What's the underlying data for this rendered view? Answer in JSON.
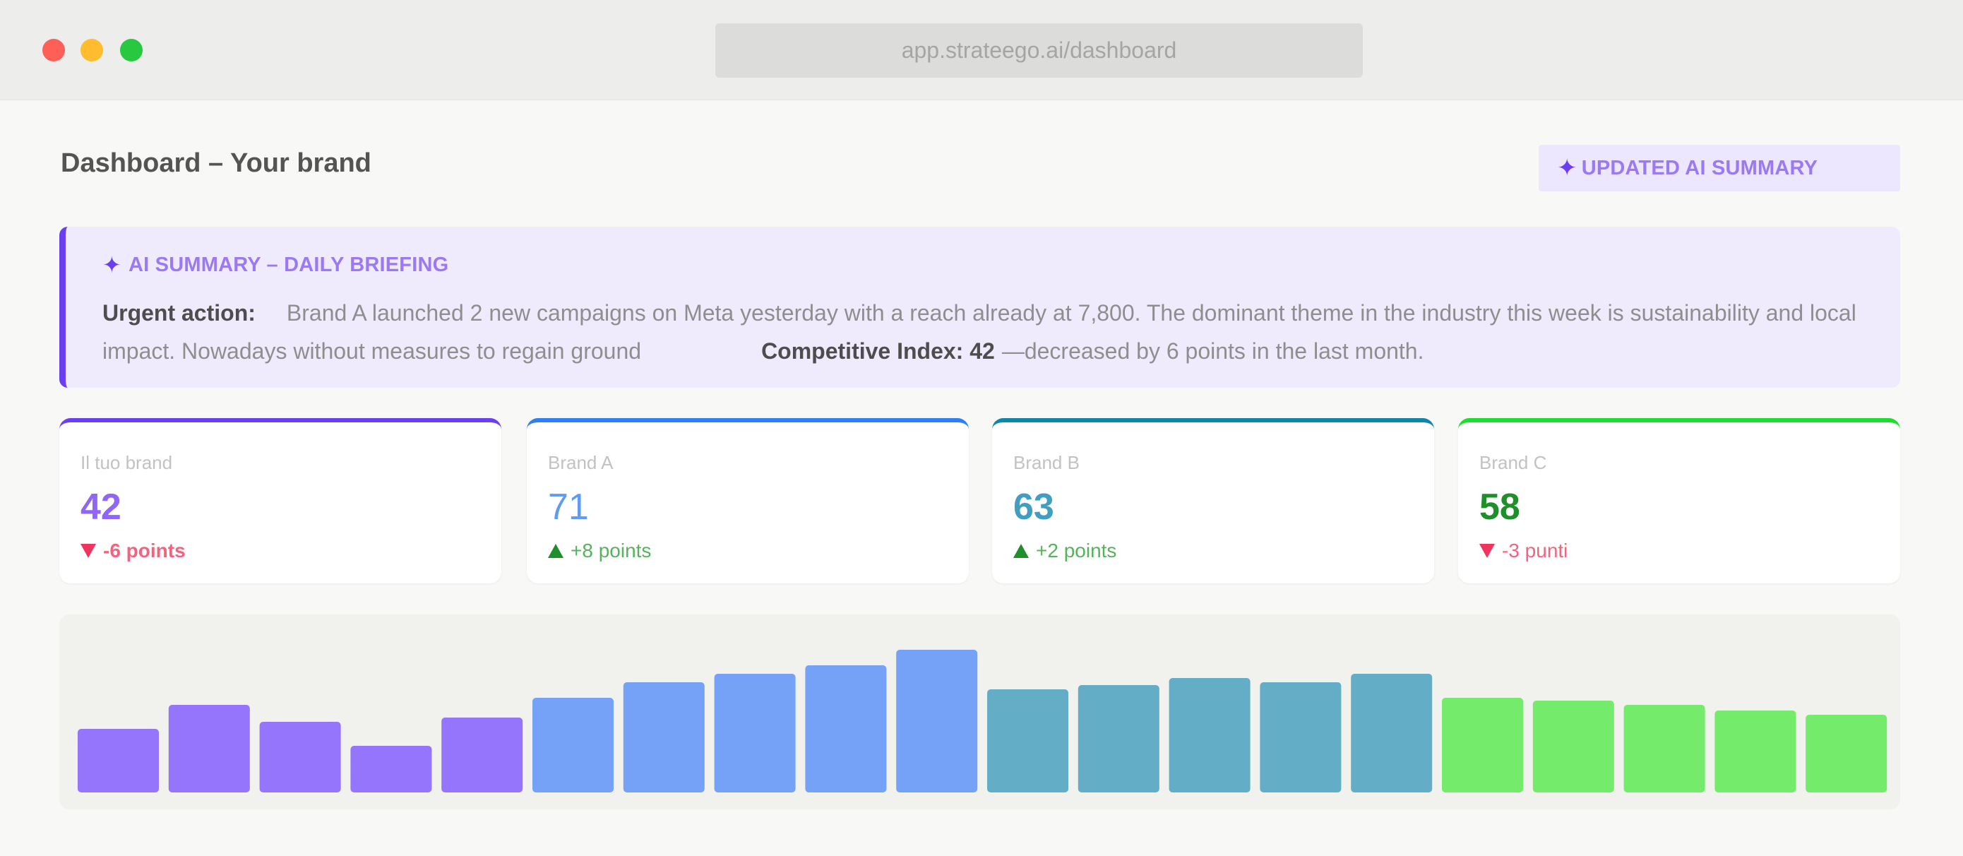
{
  "browser": {
    "url": "app.strateego.ai/dashboard"
  },
  "header": {
    "title": "Dashboard – Your brand",
    "update_button_label": "UPDATED AI SUMMARY"
  },
  "summary": {
    "heading": "AI SUMMARY – DAILY BRIEFING",
    "urgent_label": "Urgent action:",
    "body": "Brand A launched 2 new campaigns on Meta yesterday with a reach already at 7,800. The dominant theme in the industry this week is sustainability and local impact. Nowadays without measures to regain ground",
    "index_label": "Competitive Index:",
    "index_value": "42",
    "index_note": "—decreased by 6 points in the last month."
  },
  "cards": [
    {
      "label": "Il tuo brand",
      "value": "42",
      "delta": "-6 points",
      "direction": "down",
      "accent": "#6b3ff1",
      "value_color": "#8f66f5",
      "delta_color": "#f2637e",
      "delta_bold": true
    },
    {
      "label": "Brand A",
      "value": "71",
      "delta": "+8 points",
      "direction": "up",
      "accent": "#2f7ef3",
      "value_color": "#5f9bf5",
      "delta_color": "#55b35b",
      "delta_bold": false
    },
    {
      "label": "Brand B",
      "value": "63",
      "delta": "+2 points",
      "direction": "up",
      "accent": "#0e86a8",
      "value_color": "#3f9ec1",
      "delta_color": "#55b35b",
      "delta_bold": false
    },
    {
      "label": "Brand C",
      "value": "58",
      "delta": "-3 punti",
      "direction": "down",
      "accent": "#1cde2c",
      "value_color": "#1e8f29",
      "delta_color": "#f2637e",
      "delta_bold": false
    }
  ],
  "chart_data": {
    "type": "bar",
    "ylim": [
      0,
      100
    ],
    "grid": false,
    "series": [
      {
        "values": [
          45,
          62,
          50,
          33,
          53
        ],
        "color": "#9575fb"
      },
      {
        "values": [
          67,
          78,
          84,
          90,
          101
        ],
        "color": "#75a2f7"
      },
      {
        "values": [
          73,
          76,
          81,
          78,
          84
        ],
        "color": "#63adc7"
      },
      {
        "values": [
          67,
          65,
          62,
          58,
          55
        ],
        "color": "#74eb6b"
      }
    ]
  }
}
